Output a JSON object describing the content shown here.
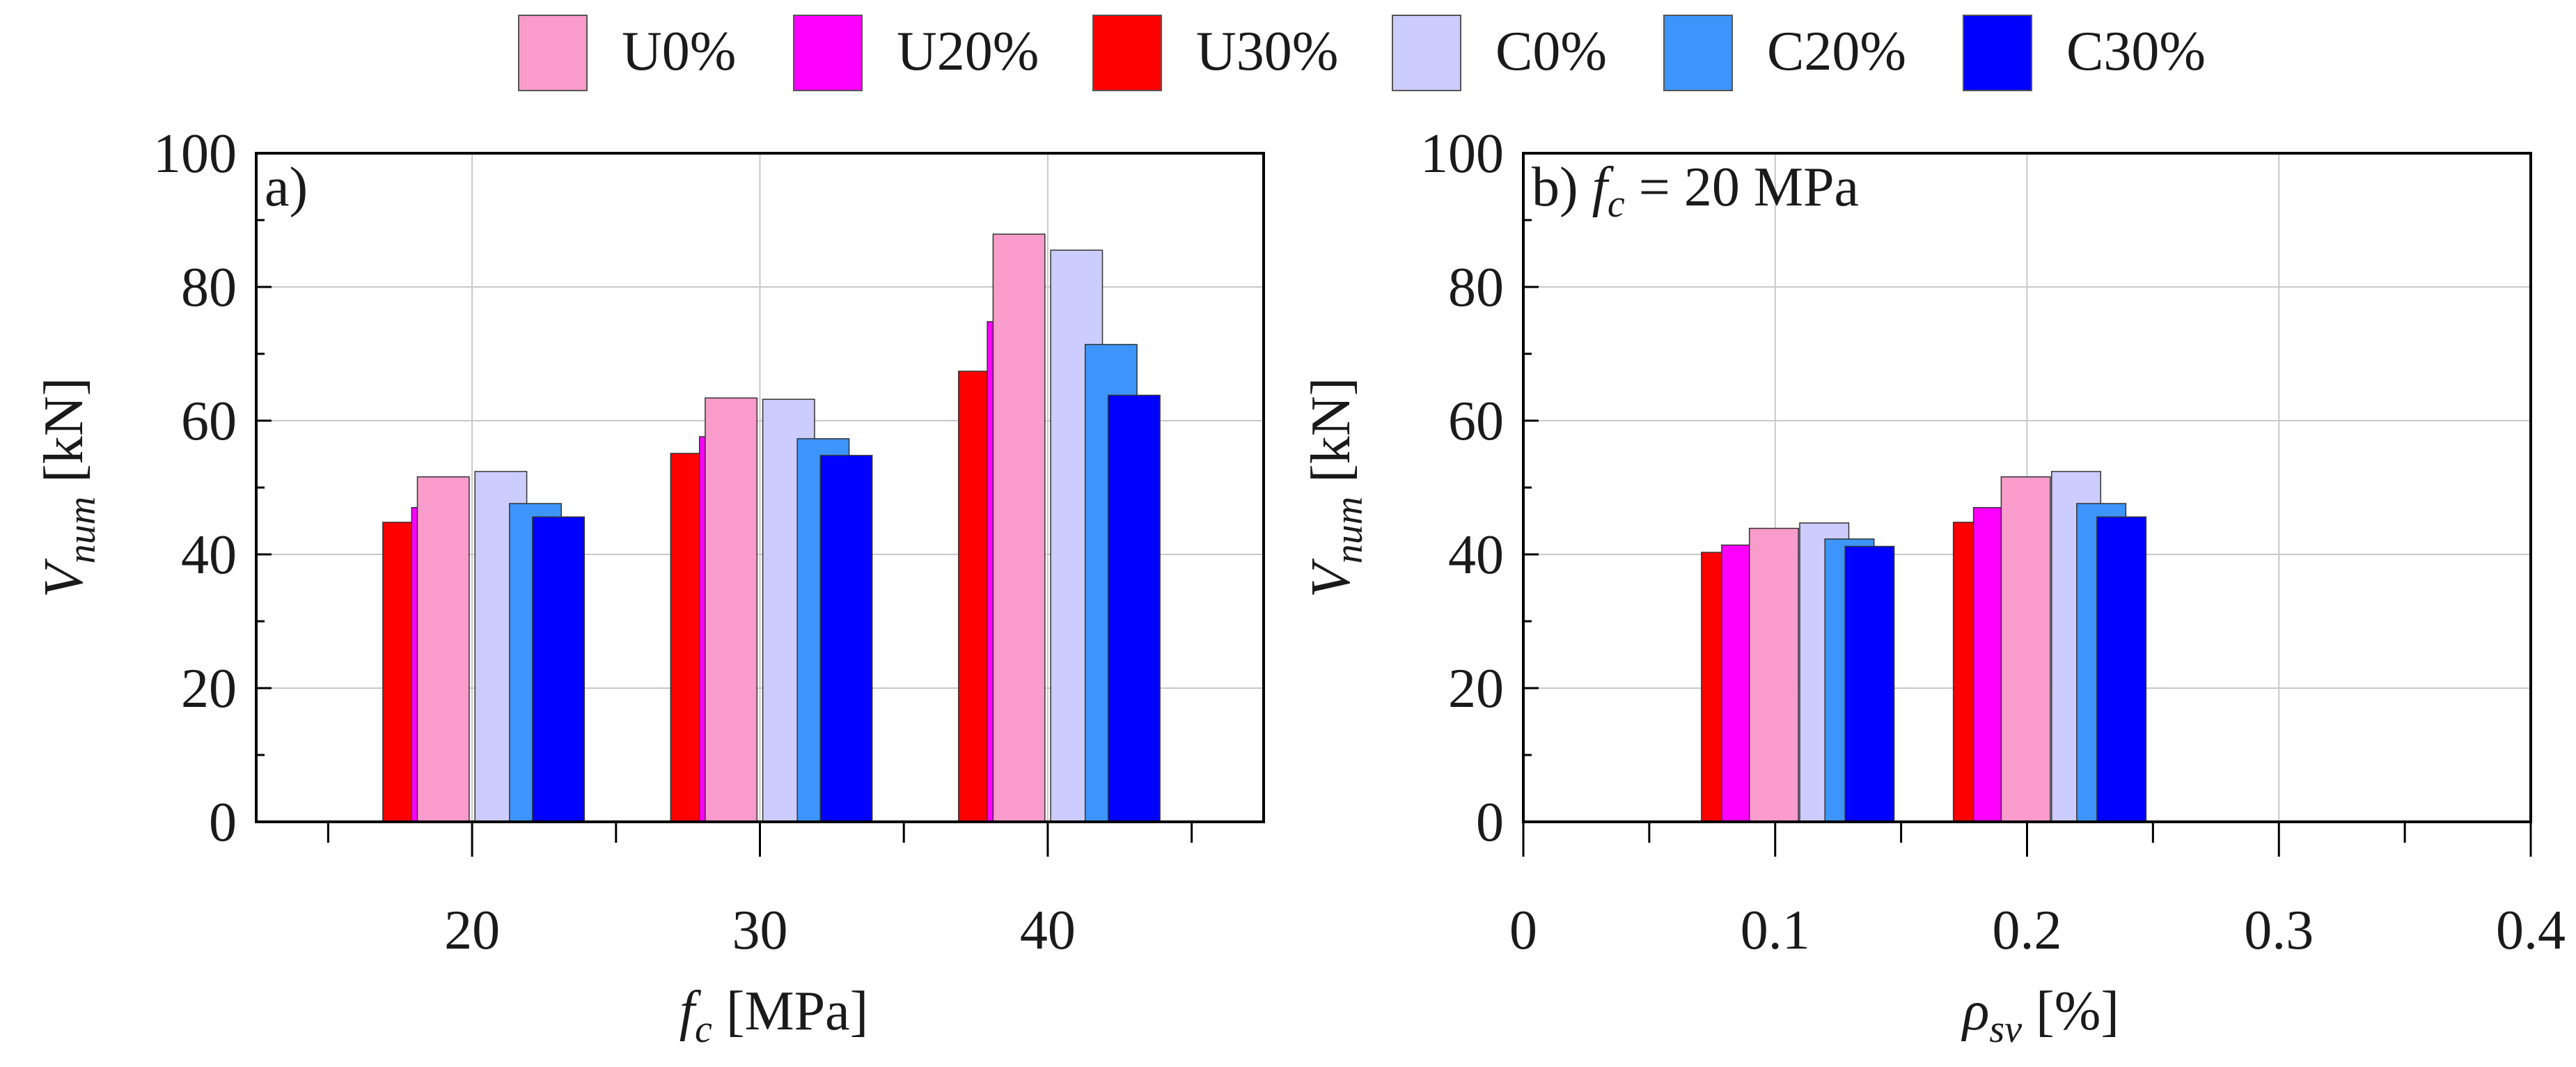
{
  "legend": {
    "items": [
      {
        "label": "U0%",
        "color": "#f99ccb"
      },
      {
        "label": "U20%",
        "color": "#ff00ff"
      },
      {
        "label": "U30%",
        "color": "#ff0000"
      },
      {
        "label": "C0%",
        "color": "#ccccff"
      },
      {
        "label": "C20%",
        "color": "#3d95fb"
      },
      {
        "label": "C30%",
        "color": "#0000ff"
      }
    ]
  },
  "chart_data": [
    {
      "type": "bar",
      "panel_label": "a)",
      "title": "",
      "xlabel_main": "f",
      "xlabel_sub": "c",
      "xlabel_unit": "[MPa]",
      "ylabel_main": "V",
      "ylabel_sub": "num",
      "ylabel_unit": "[kN]",
      "ylim": [
        0,
        100
      ],
      "yticks": [
        0,
        20,
        40,
        60,
        80,
        100
      ],
      "xlim": [
        12.5,
        47.5
      ],
      "xticks": [
        20,
        30,
        40
      ],
      "x_minor_ticks": [
        15,
        25,
        35,
        45
      ],
      "categories": [
        "20",
        "30",
        "40"
      ],
      "x": [
        20,
        30,
        40
      ],
      "bar_width_data": 1.8,
      "draw_order": [
        "U30%",
        "U20%",
        "U0%",
        "C0%",
        "C20%",
        "C30%"
      ],
      "offsets_data": {
        "U30%": -2.2,
        "U20%": -1.2,
        "U0%": -1.0,
        "C0%": 1.0,
        "C20%": 2.2,
        "C30%": 3.0
      },
      "series": [
        {
          "name": "U0%",
          "values": [
            51.6,
            63.4,
            87.9
          ]
        },
        {
          "name": "U20%",
          "values": [
            47.0,
            57.6,
            74.8
          ]
        },
        {
          "name": "U30%",
          "values": [
            44.8,
            55.1,
            67.4
          ]
        },
        {
          "name": "C0%",
          "values": [
            52.4,
            63.2,
            85.5
          ]
        },
        {
          "name": "C20%",
          "values": [
            47.6,
            57.3,
            71.4
          ]
        },
        {
          "name": "C30%",
          "values": [
            45.6,
            54.8,
            63.8
          ]
        }
      ]
    },
    {
      "type": "bar",
      "panel_label": "b)",
      "title_prefix": "f",
      "title_sub": "c",
      "title_suffix": " = 20 MPa",
      "xlabel_main": "ρ",
      "xlabel_sub": "sv",
      "xlabel_unit": "[%]",
      "ylabel_main": "V",
      "ylabel_sub": "num",
      "ylabel_unit": "[kN]",
      "ylim": [
        0,
        100
      ],
      "yticks": [
        0,
        20,
        40,
        60,
        80,
        100
      ],
      "xlim": [
        0,
        0.4
      ],
      "xticks": [
        0,
        0.1,
        0.2,
        0.3,
        0.4
      ],
      "xtick_labels": [
        "0",
        "0.1",
        "0.2",
        "0.3",
        "0.4"
      ],
      "x_minor_ticks": [
        0.05,
        0.15,
        0.25,
        0.35
      ],
      "categories": [
        "0.1",
        "0.2"
      ],
      "x": [
        0.1,
        0.2
      ],
      "bar_width_data": 0.0195,
      "draw_order": [
        "U30%",
        "U20%",
        "U0%",
        "C0%",
        "C20%",
        "C30%"
      ],
      "offsets_data": {
        "U30%": -0.0195,
        "U20%": -0.0115,
        "U0%": -0.0005,
        "C0%": 0.0195,
        "C20%": 0.0295,
        "C30%": 0.0375
      },
      "series": [
        {
          "name": "U0%",
          "values": [
            43.9,
            51.6
          ]
        },
        {
          "name": "U20%",
          "values": [
            41.4,
            47.0
          ]
        },
        {
          "name": "U30%",
          "values": [
            40.3,
            44.8
          ]
        },
        {
          "name": "C0%",
          "values": [
            44.7,
            52.4
          ]
        },
        {
          "name": "C20%",
          "values": [
            42.3,
            47.6
          ]
        },
        {
          "name": "C30%",
          "values": [
            41.2,
            45.6
          ]
        }
      ]
    }
  ]
}
